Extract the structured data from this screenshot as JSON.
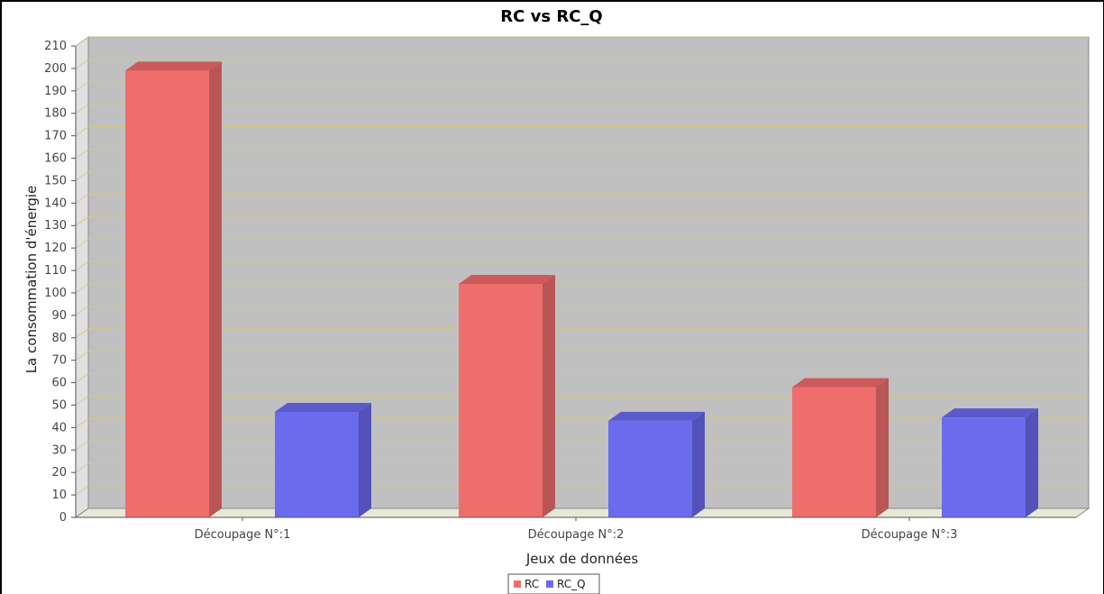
{
  "chart_data": {
    "type": "bar",
    "title": "RC vs RC_Q",
    "xlabel": "Jeux de données",
    "ylabel": "La consommation d'énergie",
    "categories": [
      "Découpage N°:1",
      "Découpage N°:2",
      "Découpage N°:3"
    ],
    "series": [
      {
        "name": "RC",
        "values": [
          199,
          104,
          58
        ],
        "color": "#ee6e6e",
        "side_color": "#b85555",
        "top_color": "#cc5a5a"
      },
      {
        "name": "RC_Q",
        "values": [
          47,
          43,
          44.5
        ],
        "color": "#6b6bee",
        "side_color": "#5252b8",
        "top_color": "#5a5acc"
      }
    ],
    "ylim": [
      0,
      210
    ],
    "yticks": [
      "0",
      "10",
      "20",
      "30",
      "40",
      "50",
      "60",
      "70",
      "80",
      "90",
      "100",
      "110",
      "120",
      "130",
      "140",
      "150",
      "160",
      "170",
      "180",
      "190",
      "200",
      "210"
    ],
    "grid": true,
    "three_d": true,
    "legend_position": "bottom"
  }
}
